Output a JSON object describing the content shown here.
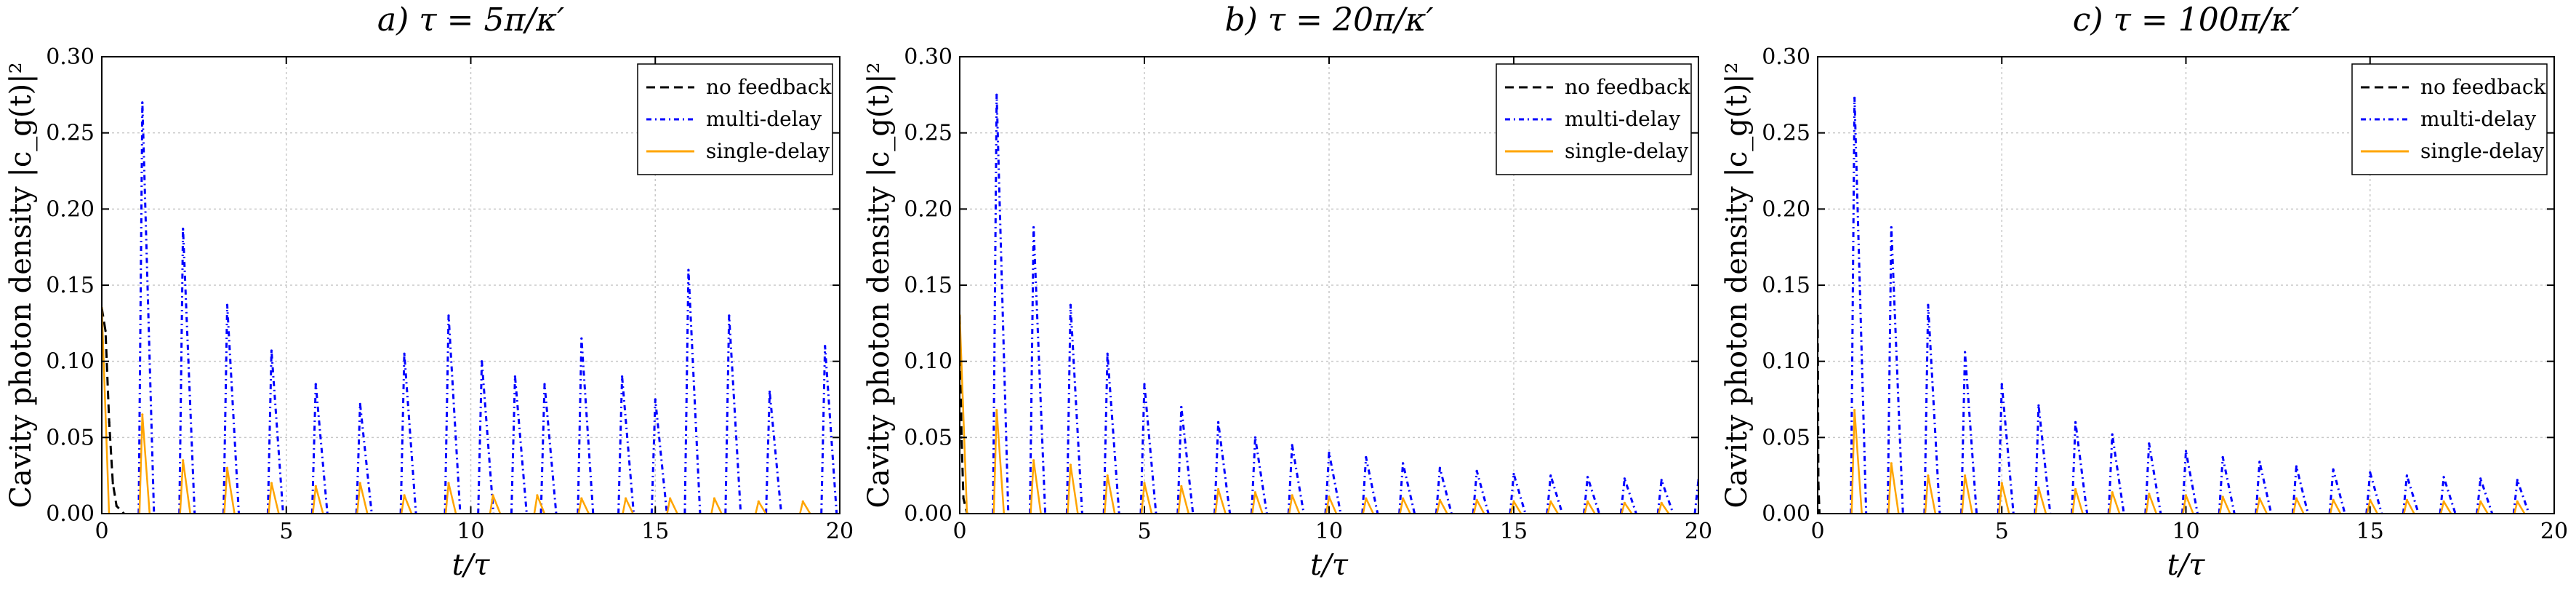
{
  "figure": {
    "background": "#ffffff"
  },
  "chart_data": [
    {
      "type": "line",
      "title": "a) τ = 5π/κ′",
      "xlabel": "t/τ",
      "ylabel": "Cavity photon density |c_g(t)|²",
      "xlim": [
        0,
        20
      ],
      "ylim": [
        0,
        0.3
      ],
      "xticks": [
        "0",
        "5",
        "10",
        "15",
        "20"
      ],
      "yticks": [
        "0.00",
        "0.05",
        "0.10",
        "0.15",
        "0.20",
        "0.25",
        "0.30"
      ],
      "grid": true,
      "legend_position": "top-right",
      "series": [
        {
          "name": "no feedback",
          "style": "dashed",
          "color": "#000000",
          "x": [
            0,
            0.1,
            0.2,
            0.3,
            0.4,
            0.6
          ],
          "y": [
            0.135,
            0.12,
            0.06,
            0.02,
            0.005,
            0.0
          ]
        },
        {
          "name": "multi-delay",
          "style": "dashdot",
          "color": "#0000ff",
          "peaks": [
            [
              1.1,
              0.27
            ],
            [
              2.2,
              0.187
            ],
            [
              3.4,
              0.137
            ],
            [
              4.6,
              0.107
            ],
            [
              5.8,
              0.085
            ],
            [
              7.0,
              0.072
            ],
            [
              8.2,
              0.105
            ],
            [
              9.4,
              0.13
            ],
            [
              10.3,
              0.1
            ],
            [
              11.2,
              0.09
            ],
            [
              12.0,
              0.085
            ],
            [
              13.0,
              0.115
            ],
            [
              14.1,
              0.09
            ],
            [
              15.0,
              0.075
            ],
            [
              15.9,
              0.16
            ],
            [
              17.0,
              0.13
            ],
            [
              18.1,
              0.08
            ],
            [
              19.6,
              0.11
            ]
          ]
        },
        {
          "name": "single-delay",
          "style": "solid",
          "color": "#ffa500",
          "peaks": [
            [
              0,
              0.135
            ],
            [
              1.1,
              0.065
            ],
            [
              2.2,
              0.035
            ],
            [
              3.4,
              0.03
            ],
            [
              4.6,
              0.02
            ],
            [
              5.8,
              0.018
            ],
            [
              7.0,
              0.02
            ],
            [
              8.2,
              0.012
            ],
            [
              9.4,
              0.02
            ],
            [
              10.6,
              0.012
            ],
            [
              11.8,
              0.012
            ],
            [
              13.0,
              0.01
            ],
            [
              14.2,
              0.01
            ],
            [
              15.4,
              0.01
            ],
            [
              16.6,
              0.01
            ],
            [
              17.8,
              0.008
            ],
            [
              19.0,
              0.008
            ]
          ]
        }
      ]
    },
    {
      "type": "line",
      "title": "b) τ = 20π/κ′",
      "xlabel": "t/τ",
      "ylabel": "Cavity photon density |c_g(t)|²",
      "xlim": [
        0,
        20
      ],
      "ylim": [
        0,
        0.3
      ],
      "xticks": [
        "0",
        "5",
        "10",
        "15",
        "20"
      ],
      "yticks": [
        "0.00",
        "0.05",
        "0.10",
        "0.15",
        "0.20",
        "0.25",
        "0.30"
      ],
      "grid": true,
      "legend_position": "top-right",
      "series": [
        {
          "name": "no feedback",
          "style": "dashed",
          "color": "#000000",
          "x": [
            0,
            0.05,
            0.1,
            0.2
          ],
          "y": [
            0.13,
            0.05,
            0.01,
            0.0
          ]
        },
        {
          "name": "multi-delay",
          "style": "dashdot",
          "color": "#0000ff",
          "peaks": [
            [
              1,
              0.275
            ],
            [
              2,
              0.188
            ],
            [
              3,
              0.137
            ],
            [
              4,
              0.105
            ],
            [
              5,
              0.085
            ],
            [
              6,
              0.07
            ],
            [
              7,
              0.06
            ],
            [
              8,
              0.05
            ],
            [
              9,
              0.045
            ],
            [
              10,
              0.04
            ],
            [
              11,
              0.037
            ],
            [
              12,
              0.033
            ],
            [
              13,
              0.03
            ],
            [
              14,
              0.028
            ],
            [
              15,
              0.026
            ],
            [
              16,
              0.025
            ],
            [
              17,
              0.024
            ],
            [
              18,
              0.023
            ],
            [
              19,
              0.022
            ],
            [
              20,
              0.022
            ]
          ]
        },
        {
          "name": "single-delay",
          "style": "solid",
          "color": "#ffa500",
          "peaks": [
            [
              0,
              0.13
            ],
            [
              1,
              0.068
            ],
            [
              2,
              0.035
            ],
            [
              3,
              0.032
            ],
            [
              4,
              0.025
            ],
            [
              5,
              0.02
            ],
            [
              6,
              0.018
            ],
            [
              7,
              0.016
            ],
            [
              8,
              0.014
            ],
            [
              9,
              0.012
            ],
            [
              10,
              0.011
            ],
            [
              11,
              0.01
            ],
            [
              12,
              0.01
            ],
            [
              13,
              0.009
            ],
            [
              14,
              0.009
            ],
            [
              15,
              0.008
            ],
            [
              16,
              0.008
            ],
            [
              17,
              0.008
            ],
            [
              18,
              0.007
            ],
            [
              19,
              0.007
            ]
          ]
        }
      ]
    },
    {
      "type": "line",
      "title": "c) τ = 100π/κ′",
      "xlabel": "t/τ",
      "ylabel": "Cavity photon density |c_g(t)|²",
      "xlim": [
        0,
        20
      ],
      "ylim": [
        0,
        0.3
      ],
      "xticks": [
        "0",
        "5",
        "10",
        "15",
        "20"
      ],
      "yticks": [
        "0.00",
        "0.05",
        "0.10",
        "0.15",
        "0.20",
        "0.25",
        "0.30"
      ],
      "grid": true,
      "legend_position": "top-right",
      "series": [
        {
          "name": "no feedback",
          "style": "dashed",
          "color": "#000000",
          "x": [
            0,
            0.02,
            0.05
          ],
          "y": [
            0.13,
            0.02,
            0.0
          ]
        },
        {
          "name": "multi-delay",
          "style": "dashdot",
          "color": "#0000ff",
          "peaks": [
            [
              1,
              0.273
            ],
            [
              2,
              0.188
            ],
            [
              3,
              0.137
            ],
            [
              4,
              0.106
            ],
            [
              5,
              0.085
            ],
            [
              6,
              0.071
            ],
            [
              7,
              0.06
            ],
            [
              8,
              0.052
            ],
            [
              9,
              0.046
            ],
            [
              10,
              0.041
            ],
            [
              11,
              0.037
            ],
            [
              12,
              0.034
            ],
            [
              13,
              0.031
            ],
            [
              14,
              0.029
            ],
            [
              15,
              0.027
            ],
            [
              16,
              0.025
            ],
            [
              17,
              0.024
            ],
            [
              18,
              0.023
            ],
            [
              19,
              0.022
            ]
          ]
        },
        {
          "name": "single-delay",
          "style": "solid",
          "color": "#ffa500",
          "peaks": [
            [
              1,
              0.068
            ],
            [
              2,
              0.033
            ],
            [
              3,
              0.025
            ],
            [
              4,
              0.025
            ],
            [
              5,
              0.02
            ],
            [
              6,
              0.017
            ],
            [
              7,
              0.016
            ],
            [
              8,
              0.014
            ],
            [
              9,
              0.013
            ],
            [
              10,
              0.012
            ],
            [
              11,
              0.011
            ],
            [
              12,
              0.01
            ],
            [
              13,
              0.01
            ],
            [
              14,
              0.009
            ],
            [
              15,
              0.009
            ],
            [
              16,
              0.009
            ],
            [
              17,
              0.008
            ],
            [
              18,
              0.008
            ],
            [
              19,
              0.008
            ]
          ]
        }
      ]
    }
  ]
}
